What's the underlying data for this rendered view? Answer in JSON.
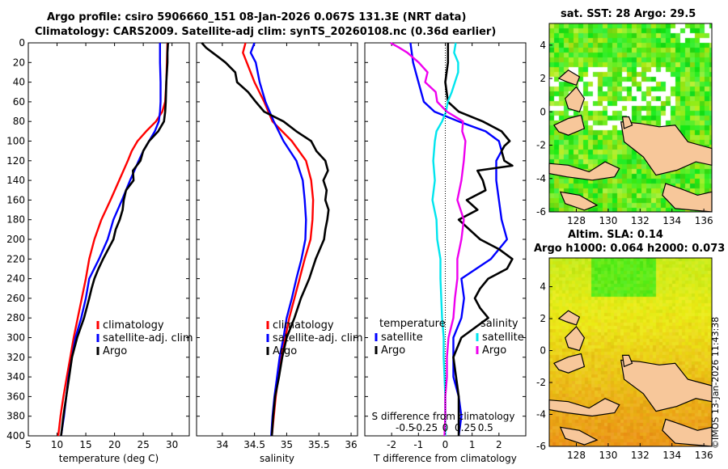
{
  "header": {
    "title_line1": "Argo profile: csiro 5906660_151 08-Jan-2026 0.067S 131.3E (NRT data)",
    "title_line2": "Climatology: CARS2009. Satellite-adj clim: synTS_20260108.nc (0.36d earlier)"
  },
  "colors": {
    "climatology": "#ff0000",
    "satellite": "#0000ff",
    "argo": "#000000",
    "satellite_diff": "#00e5ee",
    "sal_diff": "#ee00ee"
  },
  "chart_data": [
    {
      "type": "line",
      "id": "temperature",
      "xlabel": "temperature (deg C)",
      "ylabel": "",
      "xlim": [
        5,
        33
      ],
      "ylim": [
        400,
        0
      ],
      "xticks": [
        5,
        10,
        15,
        20,
        25,
        30
      ],
      "yticks": [
        0,
        20,
        40,
        60,
        80,
        100,
        120,
        140,
        160,
        180,
        200,
        220,
        240,
        260,
        280,
        300,
        320,
        340,
        360,
        380,
        400
      ],
      "legend": [
        "climatology",
        "satellite-adj. clim",
        "Argo"
      ],
      "series": [
        {
          "name": "climatology",
          "color": "#ff0000",
          "depth": [
            0,
            20,
            40,
            60,
            70,
            80,
            90,
            100,
            110,
            120,
            140,
            160,
            180,
            200,
            220,
            240,
            260,
            280,
            300,
            320,
            340,
            360,
            380,
            400
          ],
          "values": [
            29.2,
            29.1,
            29.0,
            28.8,
            28.3,
            27.2,
            25.5,
            24.0,
            23.0,
            22.3,
            20.8,
            19.3,
            17.7,
            16.5,
            15.6,
            15.0,
            14.3,
            13.6,
            12.9,
            12.3,
            11.7,
            11.1,
            10.6,
            10.2
          ]
        },
        {
          "name": "satellite-adj. clim",
          "color": "#0000ff",
          "depth": [
            0,
            20,
            40,
            60,
            70,
            80,
            90,
            100,
            110,
            120,
            140,
            160,
            180,
            200,
            220,
            240,
            260,
            280,
            300,
            320,
            340,
            360,
            380,
            400
          ],
          "values": [
            27.9,
            27.9,
            28.0,
            28.0,
            27.9,
            27.7,
            27.0,
            26.0,
            25.0,
            24.2,
            22.7,
            21.3,
            19.8,
            18.8,
            17.3,
            15.6,
            15.0,
            14.2,
            13.2,
            12.6,
            12.0,
            11.6,
            11.2,
            10.7
          ]
        },
        {
          "name": "Argo",
          "color": "#000000",
          "depth": [
            0,
            10,
            20,
            40,
            60,
            70,
            80,
            90,
            100,
            110,
            120,
            130,
            140,
            150,
            160,
            170,
            180,
            190,
            200,
            210,
            220,
            230,
            240,
            250,
            260,
            280,
            300,
            320,
            340,
            360,
            380,
            400
          ],
          "values": [
            29.3,
            29.2,
            29.2,
            29.0,
            28.9,
            28.8,
            28.6,
            27.6,
            26.0,
            25.0,
            24.5,
            23.2,
            23.3,
            22.0,
            21.6,
            21.4,
            20.9,
            20.2,
            19.8,
            18.9,
            18.0,
            17.2,
            16.5,
            16.0,
            15.6,
            14.7,
            13.5,
            12.6,
            12.1,
            11.6,
            11.1,
            10.7
          ]
        }
      ]
    },
    {
      "type": "line",
      "id": "salinity",
      "xlabel": "salinity",
      "ylabel": "",
      "xlim": [
        33.6,
        36.1
      ],
      "ylim": [
        400,
        0
      ],
      "xticks": [
        34,
        34.5,
        35,
        35.5,
        36
      ],
      "yticks": [
        0,
        20,
        40,
        60,
        80,
        100,
        120,
        140,
        160,
        180,
        200,
        220,
        240,
        260,
        280,
        300,
        320,
        340,
        360,
        380,
        400
      ],
      "legend": [
        "climatology",
        "satellite-adj. clim",
        "Argo"
      ],
      "series": [
        {
          "name": "climatology",
          "color": "#ff0000",
          "depth": [
            0,
            10,
            20,
            40,
            60,
            80,
            100,
            120,
            140,
            160,
            180,
            200,
            220,
            240,
            260,
            280,
            300,
            320,
            340,
            360,
            380,
            400
          ],
          "values": [
            34.36,
            34.32,
            34.38,
            34.5,
            34.65,
            34.78,
            35.08,
            35.3,
            35.38,
            35.41,
            35.4,
            35.37,
            35.28,
            35.2,
            35.12,
            35.04,
            34.98,
            34.92,
            34.87,
            34.83,
            34.8,
            34.77
          ]
        },
        {
          "name": "satellite-adj. clim",
          "color": "#0000ff",
          "depth": [
            0,
            10,
            20,
            40,
            60,
            80,
            100,
            120,
            140,
            160,
            180,
            200,
            220,
            240,
            260,
            280,
            300,
            320,
            340,
            360,
            380,
            400
          ],
          "values": [
            34.5,
            34.44,
            34.52,
            34.58,
            34.67,
            34.8,
            34.95,
            35.15,
            35.25,
            35.28,
            35.3,
            35.29,
            35.23,
            35.15,
            35.08,
            35.0,
            34.95,
            34.89,
            34.85,
            34.81,
            34.78,
            34.76
          ]
        },
        {
          "name": "Argo",
          "color": "#000000",
          "depth": [
            0,
            5,
            10,
            15,
            20,
            30,
            40,
            50,
            60,
            70,
            80,
            90,
            100,
            110,
            120,
            130,
            140,
            150,
            160,
            170,
            180,
            190,
            200,
            220,
            240,
            260,
            280,
            300,
            320,
            340,
            360,
            380,
            400
          ],
          "values": [
            33.68,
            33.75,
            33.85,
            33.95,
            34.05,
            34.2,
            34.23,
            34.4,
            34.52,
            34.65,
            34.95,
            35.15,
            35.38,
            35.46,
            35.6,
            35.64,
            35.57,
            35.62,
            35.6,
            35.65,
            35.63,
            35.6,
            35.58,
            35.45,
            35.35,
            35.22,
            35.12,
            35.0,
            34.93,
            34.88,
            34.82,
            34.79,
            34.77
          ]
        }
      ]
    },
    {
      "type": "line",
      "id": "differences",
      "xlabel": "T difference from climatology",
      "xlabel2": "S difference from climatology",
      "xlim": [
        -3,
        3
      ],
      "xlim2": [
        -1,
        1
      ],
      "ylim": [
        400,
        0
      ],
      "xticks": [
        -2,
        -1,
        0,
        1,
        2
      ],
      "xticklabels": [
        "-2",
        "-1",
        "0",
        "1",
        "2"
      ],
      "xticks2": [
        -0.5,
        -0.25,
        0,
        0.25,
        0.5
      ],
      "xticklabels2": [
        "-0.5",
        "-0.25",
        "0",
        "0.25",
        "0.5"
      ],
      "yticks": [
        0,
        20,
        40,
        60,
        80,
        100,
        120,
        140,
        160,
        180,
        200,
        220,
        240,
        260,
        280,
        300,
        320,
        340,
        360,
        380,
        400
      ],
      "legend_t_title": "temperature",
      "legend_s_title": "salinity",
      "legend_t": [
        "satellite",
        "Argo"
      ],
      "legend_s": [
        "satellite",
        "Argo"
      ],
      "series": [
        {
          "name": "T satellite",
          "axis": "T",
          "color": "#0000ff",
          "depth": [
            0,
            20,
            40,
            60,
            70,
            80,
            90,
            100,
            110,
            120,
            140,
            160,
            180,
            200,
            220,
            240,
            260,
            280,
            300,
            320,
            340,
            360,
            380,
            400
          ],
          "values": [
            -1.3,
            -1.2,
            -1.0,
            -0.8,
            -0.4,
            0.5,
            1.5,
            2.0,
            2.1,
            1.9,
            1.9,
            2.0,
            2.1,
            2.3,
            1.7,
            0.6,
            0.7,
            0.6,
            0.3,
            0.3,
            0.3,
            0.5,
            0.6,
            0.5
          ]
        },
        {
          "name": "T Argo",
          "axis": "T",
          "color": "#000000",
          "depth": [
            0,
            10,
            20,
            40,
            60,
            70,
            80,
            90,
            100,
            105,
            110,
            120,
            125,
            130,
            140,
            150,
            160,
            170,
            180,
            190,
            200,
            210,
            220,
            230,
            240,
            250,
            260,
            270,
            280,
            300,
            320,
            340,
            360,
            380,
            400
          ],
          "values": [
            0.1,
            0.1,
            0.1,
            0.0,
            0.1,
            0.5,
            1.4,
            2.1,
            2.4,
            2.2,
            2.1,
            2.2,
            2.5,
            1.2,
            1.4,
            1.5,
            0.8,
            1.2,
            0.5,
            0.9,
            1.3,
            2.0,
            2.5,
            2.3,
            1.6,
            1.3,
            1.1,
            1.3,
            1.6,
            0.6,
            0.3,
            0.4,
            0.5,
            0.5,
            0.5
          ]
        },
        {
          "name": "S satellite",
          "axis": "S",
          "color": "#00e5ee",
          "depth": [
            0,
            10,
            20,
            30,
            40,
            50,
            60,
            70,
            80,
            90,
            100,
            120,
            140,
            160,
            180,
            200,
            220,
            240,
            260,
            280,
            300,
            320,
            340,
            360,
            380,
            400
          ],
          "values": [
            0.13,
            0.11,
            0.16,
            0.16,
            0.12,
            0.08,
            0.03,
            0.01,
            -0.04,
            -0.11,
            -0.13,
            -0.15,
            -0.13,
            -0.16,
            -0.11,
            -0.1,
            -0.06,
            -0.06,
            -0.05,
            -0.04,
            -0.02,
            -0.02,
            -0.01,
            0.0,
            0.0,
            0.0
          ]
        },
        {
          "name": "S Argo",
          "axis": "S",
          "color": "#ee00ee",
          "depth": [
            0,
            5,
            10,
            20,
            30,
            40,
            50,
            60,
            70,
            80,
            90,
            100,
            120,
            140,
            160,
            180,
            200,
            220,
            240,
            260,
            280,
            300,
            320,
            340,
            360,
            380,
            400
          ],
          "values": [
            -0.68,
            -0.57,
            -0.47,
            -0.33,
            -0.22,
            -0.25,
            -0.12,
            -0.1,
            0.02,
            0.22,
            0.21,
            0.25,
            0.23,
            0.2,
            0.15,
            0.23,
            0.2,
            0.15,
            0.15,
            0.12,
            0.1,
            0.04,
            0.02,
            0.02,
            0.0,
            0.0,
            -0.01
          ]
        }
      ]
    },
    {
      "type": "heatmap",
      "id": "sst_map",
      "title": "sat. SST: 28 Argo: 29.5",
      "xlim": [
        126.3,
        136.5
      ],
      "ylim": [
        -6,
        5.3
      ],
      "xticks": [
        128,
        130,
        132,
        134,
        136
      ],
      "yticks": [
        -6,
        -4,
        -2,
        0,
        2,
        4
      ]
    },
    {
      "type": "heatmap",
      "id": "sla_map",
      "title_line1": "Altim. SLA: 0.14",
      "title_line2": "Argo h1000: 0.064 h2000: 0.073",
      "xlim": [
        126.3,
        136.5
      ],
      "ylim": [
        -6,
        5.8
      ],
      "xticks": [
        128,
        130,
        132,
        134,
        136
      ],
      "yticks": [
        -6,
        -4,
        -2,
        0,
        2,
        4
      ]
    }
  ],
  "footer": {
    "stamp": "©IMOS 13-Jan-2026 11:43:38"
  }
}
